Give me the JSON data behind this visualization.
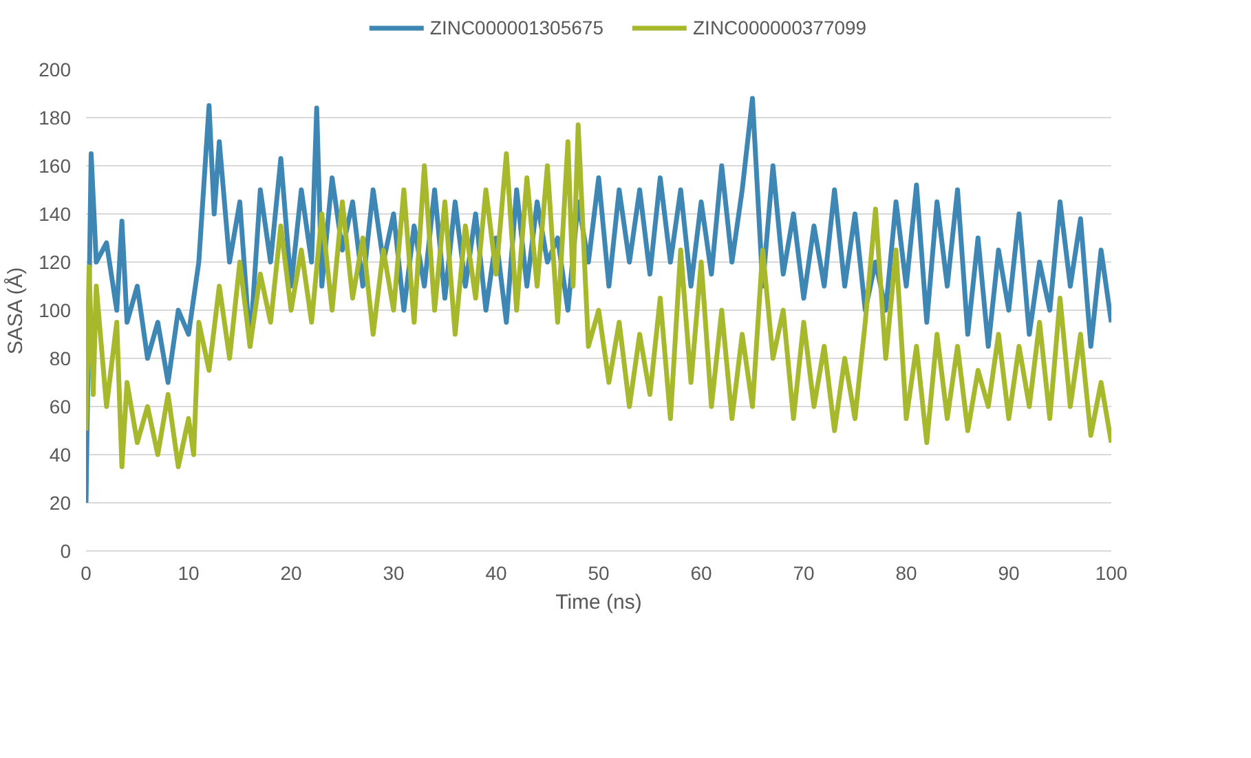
{
  "chart_data": {
    "type": "line",
    "xlabel": "Time (ns)",
    "ylabel": "SASA (Å)",
    "xlim": [
      0,
      100
    ],
    "ylim": [
      0,
      200
    ],
    "xticks": [
      0,
      10,
      20,
      30,
      40,
      50,
      60,
      70,
      80,
      90,
      100
    ],
    "yticks": [
      0,
      20,
      40,
      60,
      80,
      100,
      120,
      140,
      160,
      180,
      200
    ],
    "grid": "y",
    "legend": "top",
    "marker": "none",
    "line_style": "solid",
    "series": [
      {
        "name": "ZINC000001305675",
        "color": "#3e87b4",
        "x": [
          0,
          0.5,
          1,
          2,
          3,
          3.5,
          4,
          5,
          6,
          7,
          8,
          9,
          10,
          11,
          12,
          12.5,
          13,
          14,
          15,
          16,
          17,
          18,
          19,
          20,
          21,
          22,
          22.5,
          23,
          24,
          25,
          26,
          27,
          28,
          29,
          30,
          31,
          32,
          33,
          34,
          35,
          36,
          37,
          38,
          39,
          40,
          41,
          42,
          43,
          44,
          45,
          46,
          47,
          48,
          49,
          50,
          51,
          52,
          53,
          54,
          55,
          56,
          57,
          58,
          59,
          60,
          61,
          62,
          63,
          64,
          65,
          66,
          67,
          68,
          69,
          70,
          71,
          72,
          73,
          74,
          75,
          76,
          77,
          78,
          79,
          80,
          81,
          82,
          83,
          84,
          85,
          86,
          87,
          88,
          89,
          90,
          91,
          92,
          93,
          94,
          95,
          96,
          97,
          98,
          99,
          100
        ],
        "values": [
          20,
          165,
          120,
          128,
          100,
          137,
          95,
          110,
          80,
          95,
          70,
          100,
          90,
          120,
          185,
          140,
          170,
          120,
          145,
          85,
          150,
          120,
          163,
          110,
          150,
          120,
          184,
          110,
          155,
          125,
          145,
          110,
          150,
          120,
          140,
          100,
          135,
          110,
          150,
          105,
          145,
          110,
          140,
          100,
          130,
          95,
          150,
          110,
          145,
          120,
          130,
          100,
          145,
          120,
          155,
          110,
          150,
          120,
          150,
          115,
          155,
          120,
          150,
          110,
          145,
          115,
          160,
          120,
          150,
          188,
          110,
          160,
          115,
          140,
          105,
          135,
          110,
          150,
          110,
          140,
          100,
          120,
          100,
          145,
          110,
          152,
          95,
          145,
          110,
          150,
          90,
          130,
          85,
          125,
          100,
          140,
          90,
          120,
          100,
          145,
          110,
          138,
          85,
          125,
          95
        ]
      },
      {
        "name": "ZINC000000377099",
        "color": "#a8b82c",
        "x": [
          0,
          0.3,
          0.7,
          1,
          2,
          3,
          3.5,
          4,
          5,
          6,
          7,
          8,
          9,
          10,
          10.5,
          11,
          12,
          13,
          14,
          15,
          16,
          17,
          18,
          19,
          20,
          21,
          22,
          23,
          24,
          25,
          26,
          27,
          28,
          29,
          30,
          31,
          32,
          33,
          34,
          35,
          36,
          37,
          38,
          39,
          40,
          41,
          42,
          43,
          44,
          45,
          46,
          47,
          47.5,
          48,
          49,
          50,
          51,
          52,
          53,
          54,
          55,
          56,
          57,
          58,
          59,
          60,
          61,
          62,
          63,
          64,
          65,
          66,
          67,
          68,
          69,
          70,
          71,
          72,
          73,
          74,
          75,
          76,
          77,
          78,
          79,
          80,
          81,
          82,
          83,
          84,
          85,
          86,
          87,
          88,
          89,
          90,
          91,
          92,
          93,
          94,
          95,
          96,
          97,
          98,
          99,
          100
        ],
        "values": [
          50,
          118,
          65,
          110,
          60,
          95,
          35,
          70,
          45,
          60,
          40,
          65,
          35,
          55,
          40,
          95,
          75,
          110,
          80,
          120,
          85,
          115,
          95,
          135,
          100,
          125,
          95,
          140,
          100,
          145,
          105,
          130,
          90,
          125,
          100,
          150,
          95,
          160,
          100,
          145,
          90,
          135,
          105,
          150,
          115,
          165,
          100,
          155,
          110,
          160,
          95,
          170,
          110,
          177,
          85,
          100,
          70,
          95,
          60,
          90,
          65,
          105,
          55,
          125,
          70,
          120,
          60,
          100,
          55,
          90,
          60,
          125,
          80,
          100,
          55,
          95,
          60,
          85,
          50,
          80,
          55,
          95,
          142,
          80,
          125,
          55,
          85,
          45,
          90,
          55,
          85,
          50,
          75,
          60,
          90,
          55,
          85,
          60,
          95,
          55,
          105,
          60,
          90,
          48,
          70,
          45
        ]
      }
    ]
  }
}
